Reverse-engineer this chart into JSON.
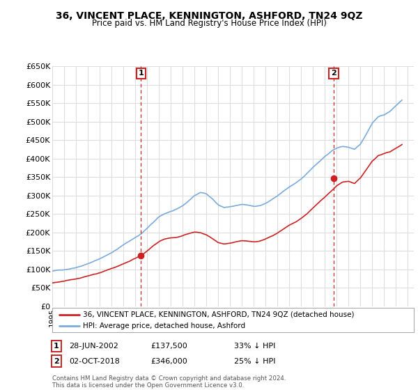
{
  "title": "36, VINCENT PLACE, KENNINGTON, ASHFORD, TN24 9QZ",
  "subtitle": "Price paid vs. HM Land Registry's House Price Index (HPI)",
  "ylim": [
    0,
    650000
  ],
  "yticks": [
    0,
    50000,
    100000,
    150000,
    200000,
    250000,
    300000,
    350000,
    400000,
    450000,
    500000,
    550000,
    600000,
    650000
  ],
  "ytick_labels": [
    "£0",
    "£50K",
    "£100K",
    "£150K",
    "£200K",
    "£250K",
    "£300K",
    "£350K",
    "£400K",
    "£450K",
    "£500K",
    "£550K",
    "£600K",
    "£650K"
  ],
  "xlim_start": 1995.0,
  "xlim_end": 2025.5,
  "sale1_x": 2002.486,
  "sale1_y": 137500,
  "sale1_label": "1",
  "sale2_x": 2018.747,
  "sale2_y": 346000,
  "sale2_label": "2",
  "hpi_color": "#7aabdc",
  "price_color": "#cc2222",
  "vline_color": "#cc2222",
  "bg_color": "#ffffff",
  "grid_color": "#dddddd",
  "legend_line1": "36, VINCENT PLACE, KENNINGTON, ASHFORD, TN24 9QZ (detached house)",
  "legend_line2": "HPI: Average price, detached house, Ashford",
  "footer1": "Contains HM Land Registry data © Crown copyright and database right 2024.",
  "footer2": "This data is licensed under the Open Government Licence v3.0.",
  "note1_num": "1",
  "note1_date": "28-JUN-2002",
  "note1_price": "£137,500",
  "note1_pct": "33% ↓ HPI",
  "note2_num": "2",
  "note2_date": "02-OCT-2018",
  "note2_price": "£346,000",
  "note2_pct": "25% ↓ HPI",
  "hpi_x": [
    1995.0,
    1995.5,
    1996.0,
    1996.5,
    1997.0,
    1997.5,
    1998.0,
    1998.5,
    1999.0,
    1999.5,
    2000.0,
    2000.5,
    2001.0,
    2001.5,
    2002.0,
    2002.5,
    2003.0,
    2003.5,
    2004.0,
    2004.5,
    2005.0,
    2005.5,
    2006.0,
    2006.5,
    2007.0,
    2007.5,
    2008.0,
    2008.5,
    2009.0,
    2009.5,
    2010.0,
    2010.5,
    2011.0,
    2011.5,
    2012.0,
    2012.5,
    2013.0,
    2013.5,
    2014.0,
    2014.5,
    2015.0,
    2015.5,
    2016.0,
    2016.5,
    2017.0,
    2017.5,
    2018.0,
    2018.5,
    2019.0,
    2019.5,
    2020.0,
    2020.5,
    2021.0,
    2021.5,
    2022.0,
    2022.5,
    2023.0,
    2023.5,
    2024.0,
    2024.5
  ],
  "hpi_y": [
    95000,
    97000,
    99000,
    102000,
    106000,
    111000,
    117000,
    123000,
    130000,
    138000,
    147000,
    157000,
    168000,
    178000,
    188000,
    198000,
    213000,
    228000,
    243000,
    252000,
    258000,
    263000,
    272000,
    285000,
    300000,
    308000,
    305000,
    292000,
    275000,
    268000,
    270000,
    272000,
    275000,
    273000,
    270000,
    272000,
    278000,
    287000,
    298000,
    310000,
    322000,
    332000,
    342000,
    358000,
    375000,
    390000,
    405000,
    418000,
    428000,
    432000,
    430000,
    425000,
    440000,
    468000,
    498000,
    515000,
    520000,
    530000,
    545000,
    560000
  ],
  "price_x": [
    1995.0,
    1995.5,
    1996.0,
    1996.5,
    1997.0,
    1997.5,
    1998.0,
    1998.5,
    1999.0,
    1999.5,
    2000.0,
    2000.5,
    2001.0,
    2001.5,
    2002.0,
    2002.5,
    2003.0,
    2003.5,
    2004.0,
    2004.5,
    2005.0,
    2005.5,
    2006.0,
    2006.5,
    2007.0,
    2007.5,
    2008.0,
    2008.5,
    2009.0,
    2009.5,
    2010.0,
    2010.5,
    2011.0,
    2011.5,
    2012.0,
    2012.5,
    2013.0,
    2013.5,
    2014.0,
    2014.5,
    2015.0,
    2015.5,
    2016.0,
    2016.5,
    2017.0,
    2017.5,
    2018.0,
    2018.5,
    2019.0,
    2019.5,
    2020.0,
    2020.5,
    2021.0,
    2021.5,
    2022.0,
    2022.5,
    2023.0,
    2023.5,
    2024.0,
    2024.5
  ],
  "price_y": [
    63000,
    65000,
    67000,
    70000,
    73000,
    77000,
    81000,
    86000,
    90000,
    96000,
    102000,
    108000,
    115000,
    122000,
    130000,
    138000,
    150000,
    163000,
    175000,
    182000,
    185000,
    186000,
    190000,
    196000,
    200000,
    198000,
    192000,
    182000,
    170000,
    165000,
    167000,
    170000,
    173000,
    172000,
    170000,
    172000,
    177000,
    185000,
    194000,
    205000,
    215000,
    222000,
    232000,
    245000,
    260000,
    275000,
    290000,
    305000,
    320000,
    330000,
    332000,
    325000,
    340000,
    362000,
    385000,
    400000,
    405000,
    410000,
    420000,
    430000
  ]
}
